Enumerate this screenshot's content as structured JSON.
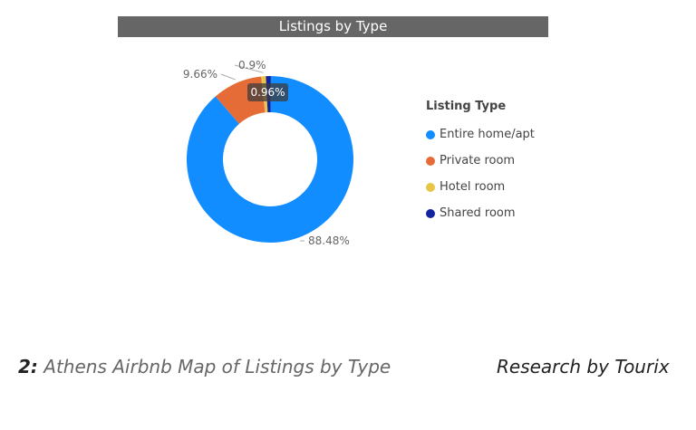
{
  "chart_data": {
    "type": "pie",
    "variant": "donut",
    "title": "Listings by Type",
    "legend_title": "Listing Type",
    "legend_position": "right",
    "categories": [
      "Entire home/apt",
      "Private room",
      "Hotel room",
      "Shared room"
    ],
    "values": [
      88.48,
      9.66,
      0.9,
      0.96
    ],
    "labels": [
      "88.48%",
      "9.66%",
      "0.9%",
      "0.96%"
    ],
    "colors": [
      "#118DFF",
      "#E66C37",
      "#E8C547",
      "#12239E"
    ],
    "tooltip": "0.96%"
  },
  "caption": {
    "number": "2:",
    "text": " Athens Airbnb Map of Listings by Type"
  },
  "credit": "Research by Tourix"
}
